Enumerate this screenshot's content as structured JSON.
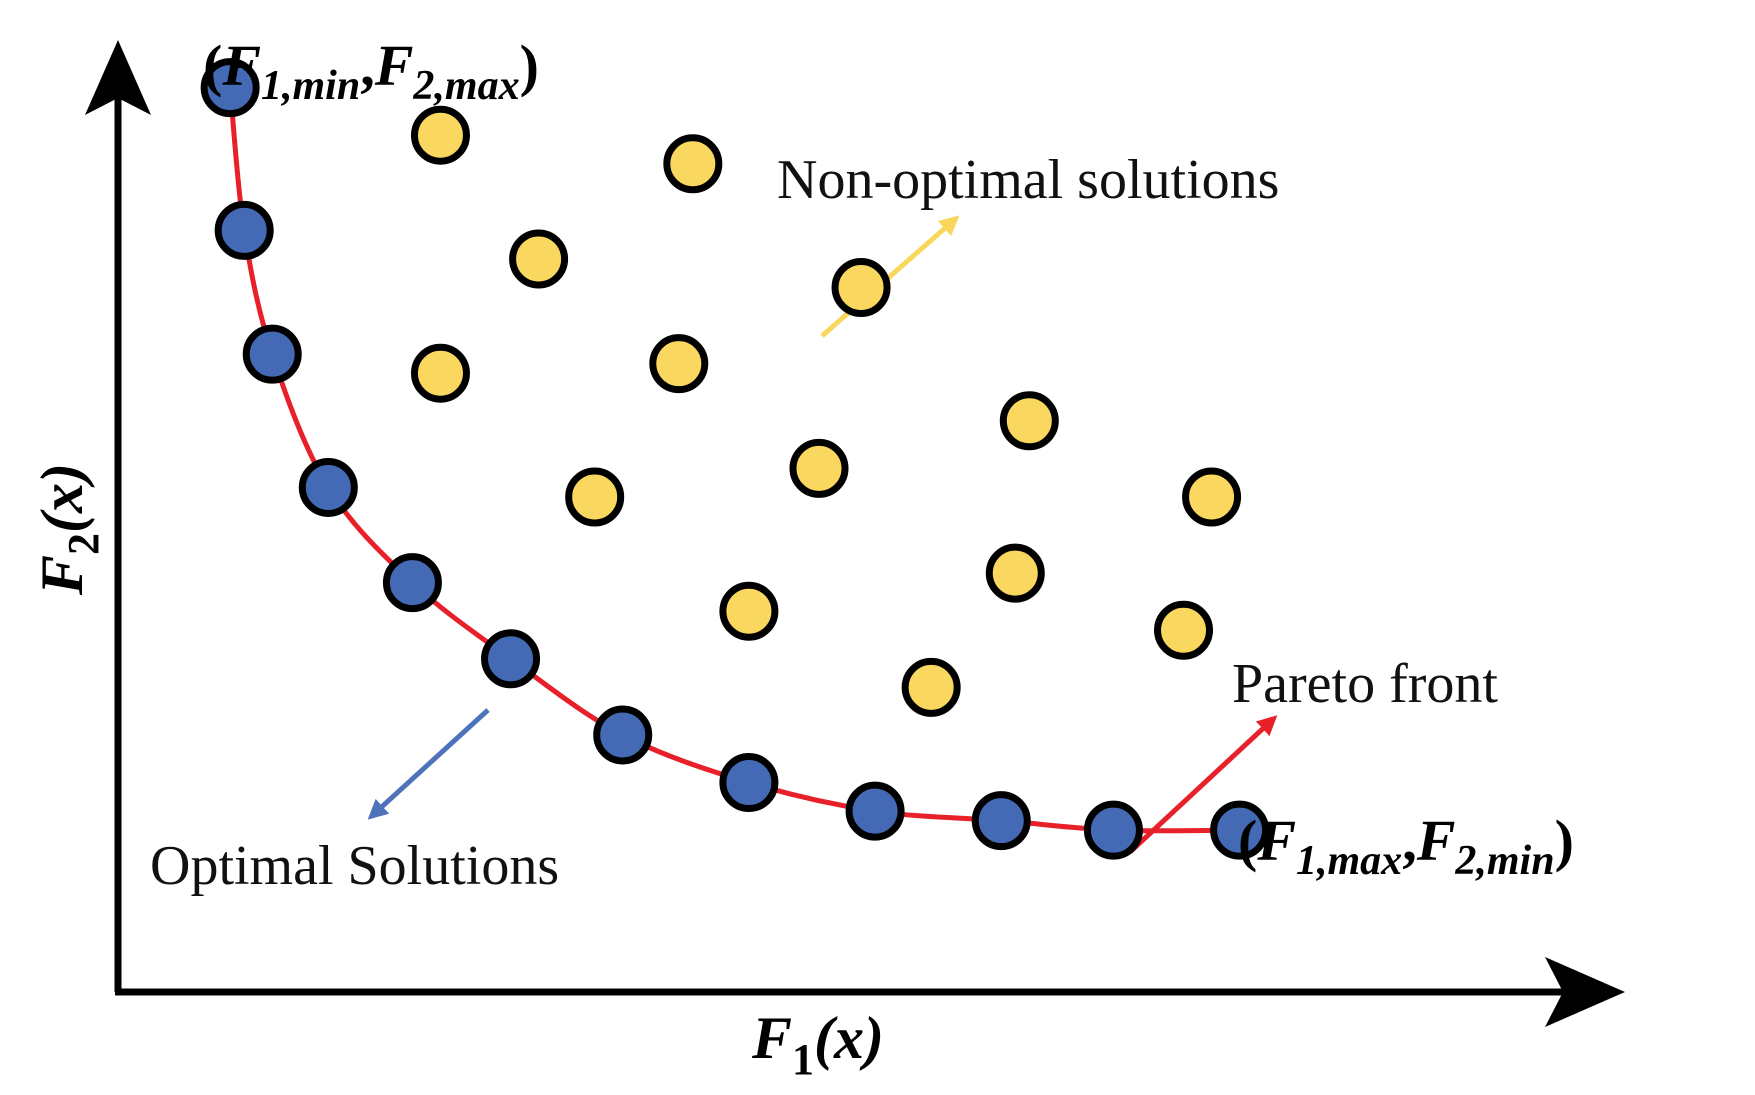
{
  "axes": {
    "x_label": {
      "main": "F",
      "sub": "1",
      "arg": "(x)"
    },
    "y_label": {
      "main": "F",
      "sub": "2",
      "arg": "(x)"
    }
  },
  "corner_labels": {
    "top_left": {
      "open": "(",
      "f1": "F",
      "f1_sub": "1,min",
      "comma": ",",
      "f2": "F",
      "f2_sub": "2,max",
      "close": ")"
    },
    "bottom_right": {
      "open": "(",
      "f1": "F",
      "f1_sub": "1,max",
      "comma": ",",
      "f2": "F",
      "f2_sub": "2,min",
      "close": ")"
    }
  },
  "annotations": {
    "non_optimal": "Non-optimal solutions",
    "pareto_front": "Pareto front",
    "optimal": "Optimal Solutions"
  },
  "colors": {
    "optimal_fill": "#4469b5",
    "non_optimal_fill": "#fad75e",
    "pareto_curve": "#e8202a",
    "non_optimal_arrow": "#f9d75c",
    "pareto_arrow": "#e8202a",
    "optimal_arrow": "#4f73ba",
    "axis": "#000000"
  },
  "chart_data": {
    "type": "scatter",
    "series": [
      {
        "name": "Optimal Solutions",
        "points": [
          [
            0.08,
            0.95
          ],
          [
            0.09,
            0.8
          ],
          [
            0.11,
            0.67
          ],
          [
            0.15,
            0.53
          ],
          [
            0.21,
            0.43
          ],
          [
            0.28,
            0.35
          ],
          [
            0.36,
            0.27
          ],
          [
            0.45,
            0.22
          ],
          [
            0.54,
            0.19
          ],
          [
            0.63,
            0.18
          ],
          [
            0.71,
            0.17
          ],
          [
            0.8,
            0.17
          ]
        ]
      },
      {
        "name": "Non-optimal solutions",
        "points": [
          [
            0.23,
            0.9
          ],
          [
            0.41,
            0.87
          ],
          [
            0.3,
            0.77
          ],
          [
            0.53,
            0.74
          ],
          [
            0.23,
            0.65
          ],
          [
            0.4,
            0.66
          ],
          [
            0.65,
            0.6
          ],
          [
            0.5,
            0.55
          ],
          [
            0.34,
            0.52
          ],
          [
            0.78,
            0.52
          ],
          [
            0.64,
            0.44
          ],
          [
            0.45,
            0.4
          ],
          [
            0.76,
            0.38
          ],
          [
            0.58,
            0.32
          ]
        ]
      }
    ],
    "curve": "Pareto front"
  }
}
